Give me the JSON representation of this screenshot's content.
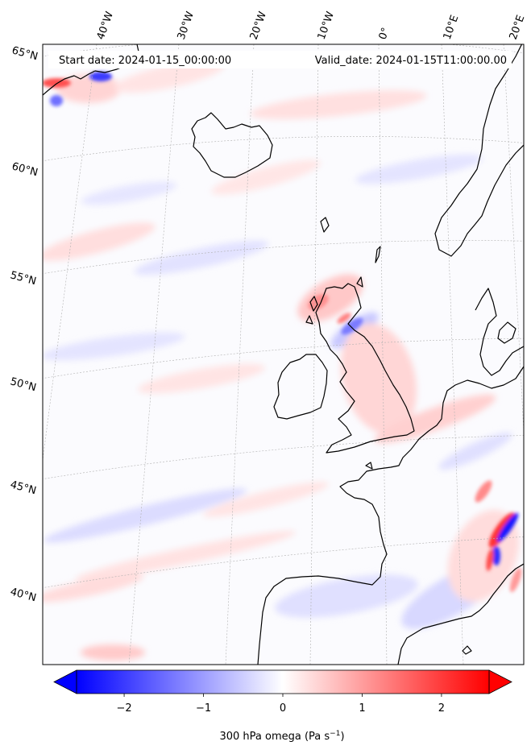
{
  "map": {
    "start_label": "Start date: 2024-01-15_00:00:00",
    "valid_label": "Valid_date: 2024-01-15T11:00:00.00",
    "lon_labels": [
      "40°W",
      "30°W",
      "20°W",
      "10°W",
      "0°",
      "10°E",
      "20°E"
    ],
    "lat_labels": [
      "65°N",
      "60°N",
      "55°N",
      "50°N",
      "45°N",
      "40°N"
    ],
    "field": "300 hPa omega",
    "land_outline_color": "#000000",
    "graticule_color": "#b0b0b0"
  },
  "colorbar": {
    "label_text": "300 hPa omega (Pa s",
    "label_exponent": "−1",
    "label_close": ")",
    "ticks": [
      "−2",
      "−1",
      "0",
      "1",
      "2"
    ],
    "tick_values": [
      -2,
      -1,
      0,
      1,
      2
    ],
    "range": [
      -2.6,
      2.6
    ],
    "colors": {
      "low": "#0000ff",
      "mid": "#ffffff",
      "high": "#ff0000"
    },
    "extend": "both"
  }
}
